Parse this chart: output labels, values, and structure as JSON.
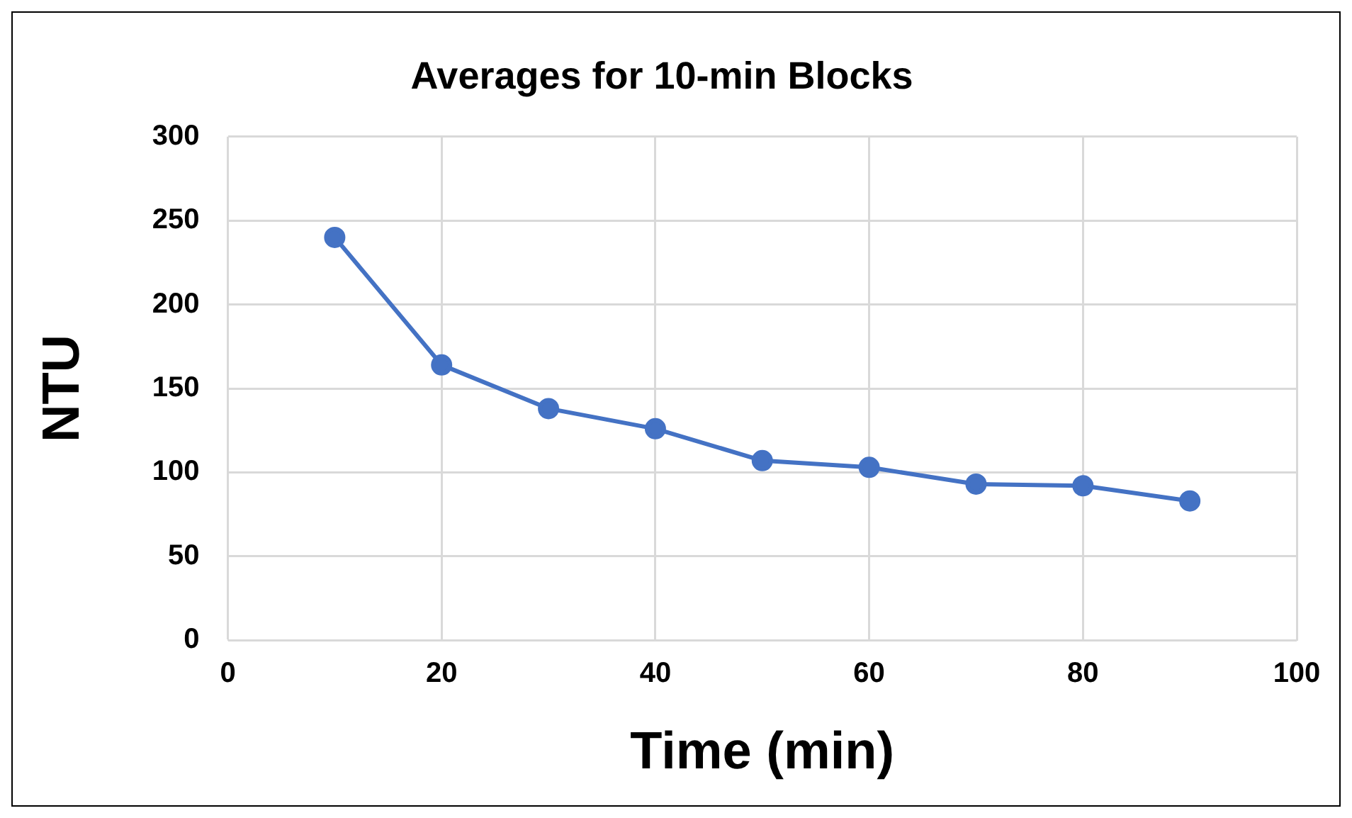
{
  "chart_data": {
    "type": "line",
    "title": "Averages for 10-min Blocks",
    "xlabel": "Time (min)",
    "ylabel": "NTU",
    "x": [
      10,
      20,
      30,
      40,
      50,
      60,
      70,
      80,
      90
    ],
    "series": [
      {
        "color": "#4472c4",
        "values": [
          240,
          164,
          138,
          126,
          107,
          103,
          93,
          92,
          83
        ]
      }
    ],
    "xlim": [
      0,
      100
    ],
    "xticks": [
      0,
      20,
      40,
      60,
      80,
      100
    ],
    "ylim": [
      0,
      300
    ],
    "yticks": [
      0,
      50,
      100,
      150,
      200,
      250,
      300
    ],
    "grid": true,
    "legend": false,
    "marker": "circle",
    "line_style": "solid"
  }
}
